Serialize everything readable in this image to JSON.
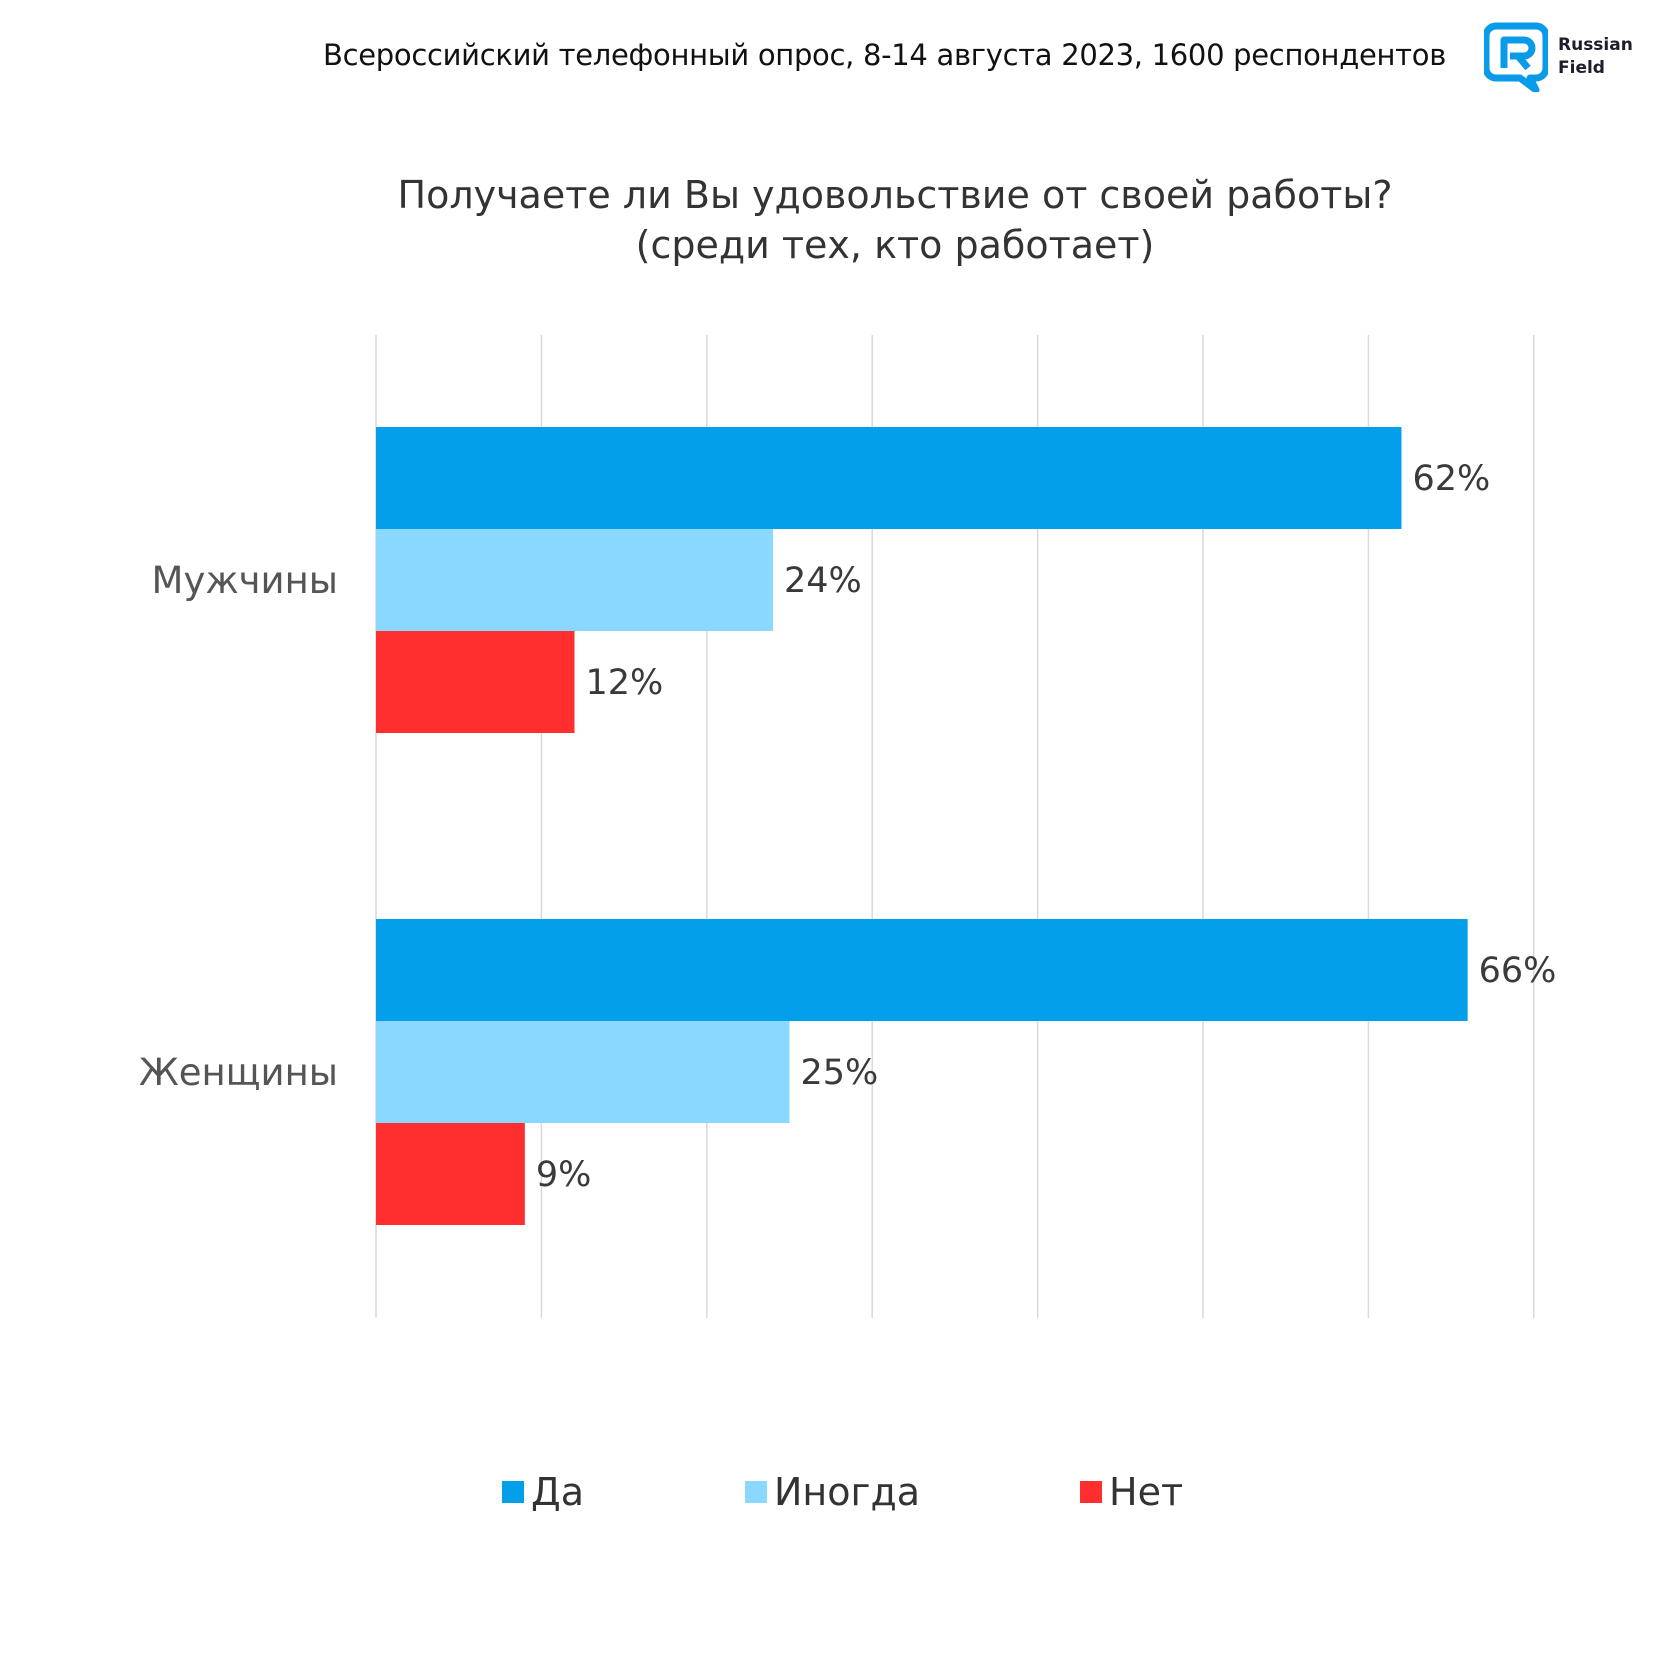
{
  "header": {
    "survey_info": "Всероссийский телефонный опрос, 8-14 августа 2023, 1600 респондентов",
    "logo": {
      "icon": "russian-field-logo-icon",
      "line1": "Russian",
      "line2": "Field",
      "color": "#0a9be8"
    }
  },
  "chart_data": {
    "type": "bar",
    "orientation": "horizontal",
    "title": "Получаете ли Вы удовольствие от своей работы?",
    "subtitle": "(среди тех, кто работает)",
    "categories": [
      "Мужчины",
      "Женщины"
    ],
    "series": [
      {
        "name": "Да",
        "color": "#039fea",
        "values": [
          62,
          66
        ],
        "labels": [
          "62%",
          "66%"
        ]
      },
      {
        "name": "Иногда",
        "color": "#8ad7ff",
        "values": [
          24,
          25
        ],
        "labels": [
          "24%",
          "25%"
        ]
      },
      {
        "name": "Нет",
        "color": "#ff2f2f",
        "values": [
          12,
          9
        ],
        "labels": [
          "12%",
          "9%"
        ]
      }
    ],
    "xlabel": "",
    "ylabel": "",
    "xlim": [
      0,
      70
    ],
    "grid_step": 10,
    "grid": true,
    "x_tick_labels_visible": false,
    "legend_position": "bottom-center",
    "unit": "%"
  }
}
